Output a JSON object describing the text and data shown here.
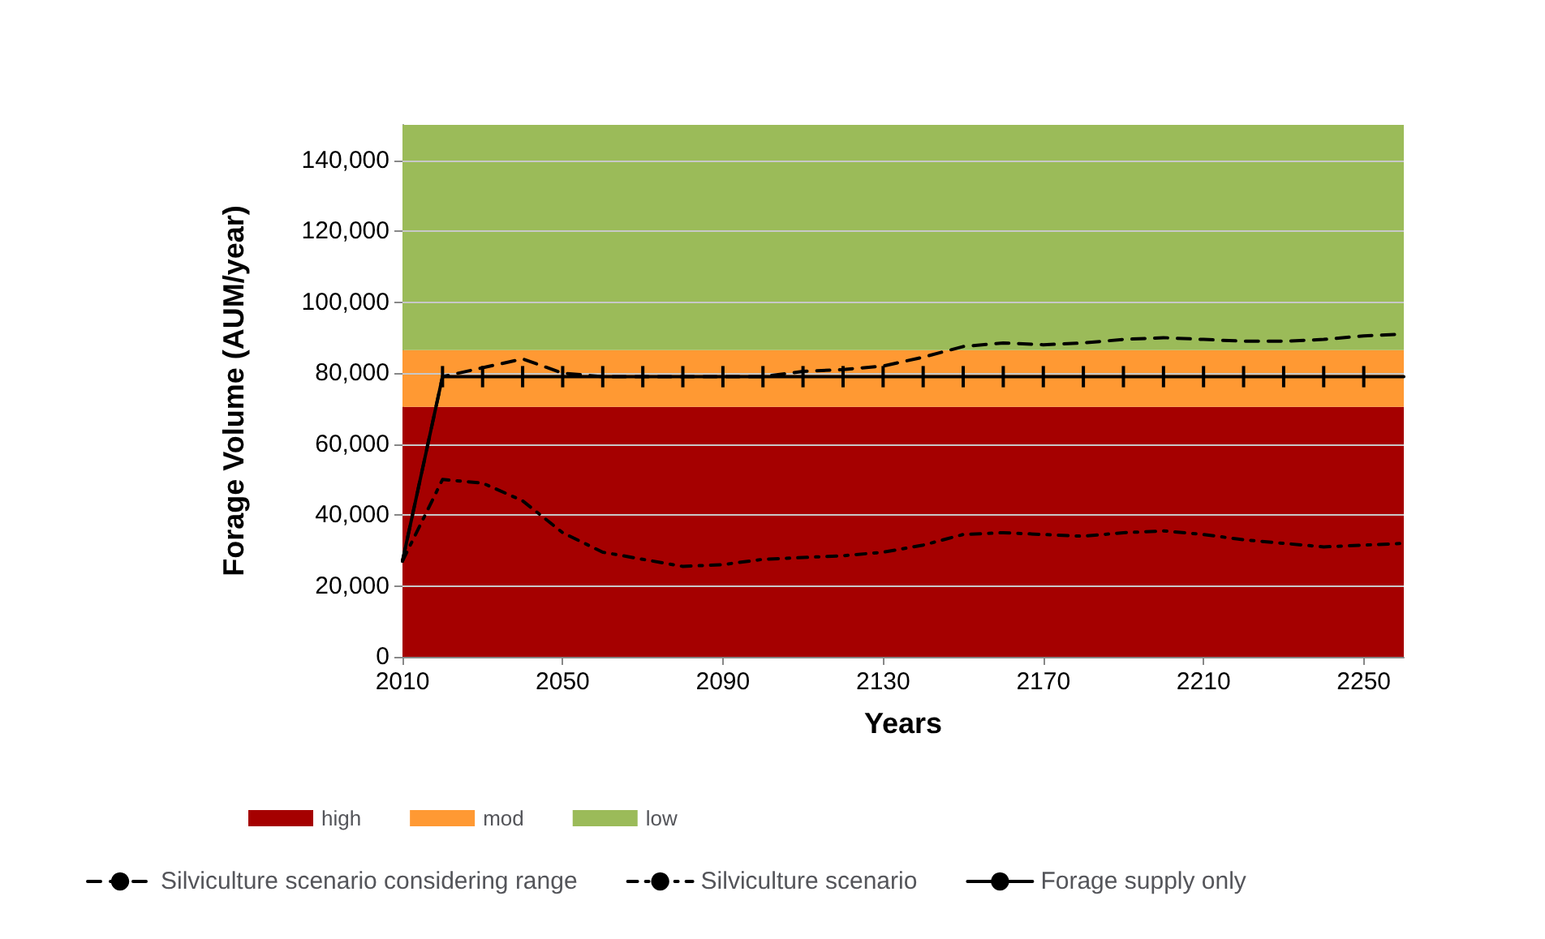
{
  "chart_data": {
    "type": "line",
    "xlabel": "Years",
    "ylabel": "Forage Volume (AUM/year)",
    "x": [
      2010,
      2020,
      2030,
      2040,
      2050,
      2060,
      2070,
      2080,
      2090,
      2100,
      2110,
      2120,
      2130,
      2140,
      2150,
      2160,
      2170,
      2180,
      2190,
      2200,
      2210,
      2220,
      2230,
      2240,
      2250,
      2260
    ],
    "series": [
      {
        "name": "Silviculture scenario considering range",
        "color": "#000000",
        "line_style": "dashed",
        "marker": "none",
        "values": [
          27000,
          79000,
          81500,
          84000,
          80000,
          79000,
          79000,
          79000,
          79000,
          79000,
          80500,
          81000,
          82000,
          84500,
          87500,
          88500,
          88000,
          88500,
          89500,
          90000,
          89500,
          89000,
          89000,
          89500,
          90500,
          91000
        ]
      },
      {
        "name": "Silviculture scenario",
        "color": "#000000",
        "line_style": "dashdot",
        "marker": "none",
        "values": [
          27000,
          50000,
          49000,
          44000,
          35000,
          29500,
          27500,
          25500,
          26000,
          27500,
          28000,
          28500,
          29500,
          31500,
          34500,
          35000,
          34500,
          34000,
          35000,
          35500,
          34500,
          33000,
          32000,
          31000,
          31500,
          32000
        ]
      },
      {
        "name": "Forage supply only",
        "color": "#000000",
        "line_style": "solid",
        "marker": "none",
        "values": [
          27000,
          79000,
          79000,
          79000,
          79000,
          79000,
          79000,
          79000,
          79000,
          79000,
          79000,
          79000,
          79000,
          79000,
          79000,
          79000,
          79000,
          79000,
          79000,
          79000,
          79000,
          79000,
          79000,
          79000,
          79000,
          79000
        ],
        "errors": [
          null,
          3000,
          3000,
          3000,
          3000,
          3000,
          3000,
          3000,
          3000,
          3000,
          3000,
          3000,
          3000,
          3000,
          3000,
          3000,
          3000,
          3000,
          3000,
          3000,
          3000,
          3000,
          3000,
          3000,
          3000,
          null
        ]
      }
    ],
    "bands": [
      {
        "axis": "y",
        "from": 0,
        "to": 70500,
        "label": "high",
        "color": "#a50000"
      },
      {
        "axis": "y",
        "from": 70500,
        "to": 86500,
        "label": "mod",
        "color": "#ff9933"
      },
      {
        "axis": "y",
        "from": 86500,
        "to": 150000,
        "label": "low",
        "color": "#9bbb59"
      }
    ],
    "xlim": [
      2010,
      2260
    ],
    "xticks": [
      2010,
      2050,
      2090,
      2130,
      2170,
      2210,
      2250
    ],
    "ylim": [
      0,
      150000
    ],
    "yticks": [
      {
        "value": 0,
        "label": "0"
      },
      {
        "value": 20000,
        "label": "20,000"
      },
      {
        "value": 40000,
        "label": "40,000"
      },
      {
        "value": 60000,
        "label": "60,000"
      },
      {
        "value": 80000,
        "label": "80,000"
      },
      {
        "value": 100000,
        "label": "100,000"
      },
      {
        "value": 120000,
        "label": "120,000"
      },
      {
        "value": 140000,
        "label": "140,000"
      }
    ],
    "grid": "y",
    "legend": "bottom"
  }
}
